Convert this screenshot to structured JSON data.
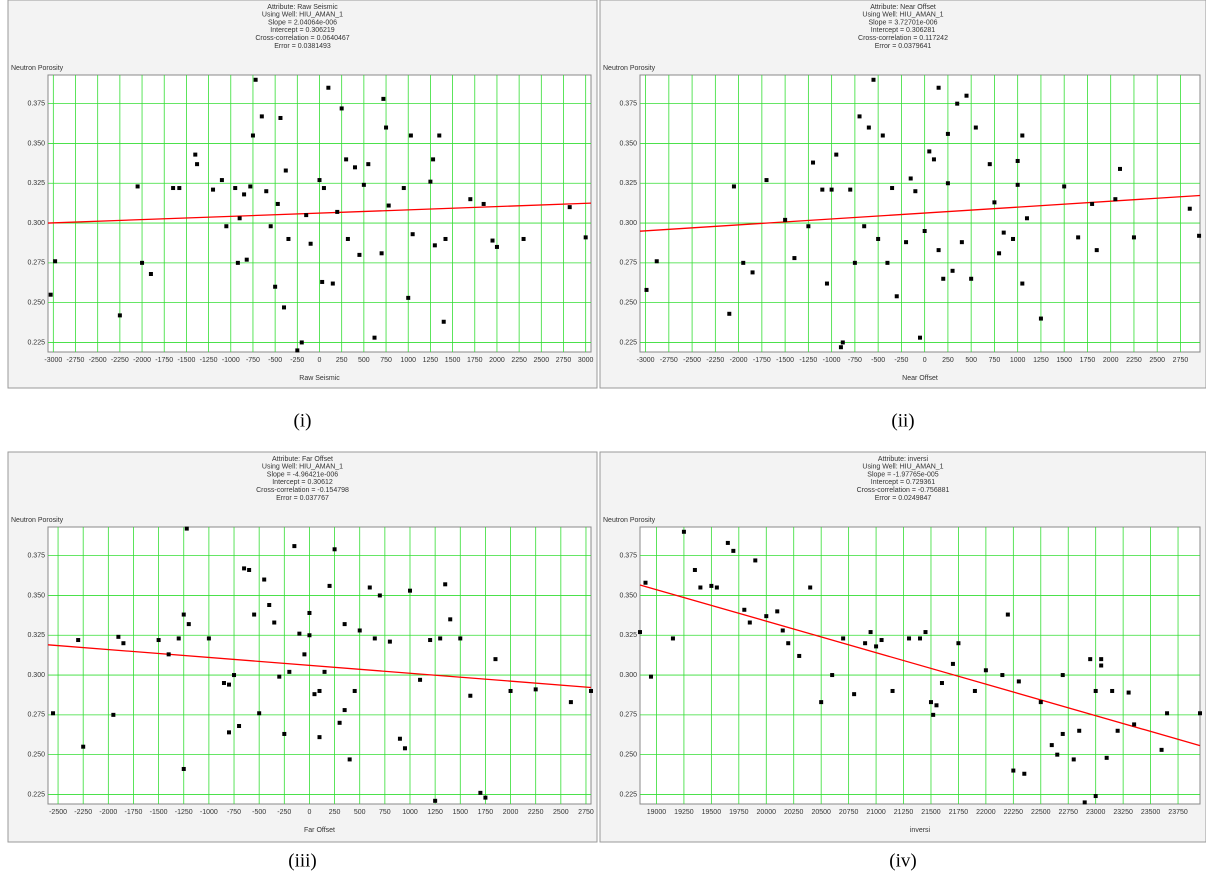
{
  "chart_data": [
    {
      "type": "scatter",
      "caption": "(i)",
      "title_lines": [
        "Attribute: Raw Seismic",
        "Using Well: HIU_AMAN_1",
        "Slope = 2.04064e-006",
        "Intercept = 0.306219",
        "Cross-correlation = 0.0640467",
        "Error = 0.0381493"
      ],
      "y_label": "Neutron Porosity",
      "x_label": "Raw Seismic",
      "grid": true,
      "color": "#000000",
      "xlim": [
        -3060,
        3060
      ],
      "ylim": [
        0.219,
        0.393
      ],
      "xticks": [
        -3000,
        -2750,
        -2500,
        -2250,
        -2000,
        -1750,
        -1500,
        -1250,
        -1000,
        -750,
        -500,
        -250,
        0,
        250,
        500,
        750,
        1000,
        1250,
        1500,
        1750,
        2000,
        2250,
        2500,
        2750,
        3000
      ],
      "yticks": [
        0.225,
        {
          "value": 0.25,
          "label": "0.250"
        },
        0.275,
        {
          "value": 0.3,
          "label": "0.300"
        },
        0.325,
        {
          "value": 0.35,
          "label": "0.350"
        },
        0.375
      ],
      "x": [
        -3030,
        -2980,
        -2250,
        -2050,
        -2000,
        -1900,
        -1650,
        -1580,
        -1400,
        -1380,
        -1200,
        -1100,
        -1050,
        -950,
        -920,
        -900,
        -850,
        -820,
        -780,
        -750,
        -720,
        -650,
        -600,
        -550,
        -500,
        -470,
        -440,
        -400,
        -380,
        -350,
        -250,
        -200,
        -150,
        -100,
        0,
        30,
        50,
        100,
        150,
        200,
        250,
        300,
        320,
        400,
        450,
        500,
        550,
        620,
        700,
        720,
        750,
        780,
        950,
        1000,
        1030,
        1050,
        1250,
        1280,
        1300,
        1350,
        1400,
        1420,
        1700,
        1850,
        1950,
        2000,
        2300,
        2820,
        3000
      ],
      "values": [
        0.255,
        0.276,
        0.242,
        0.323,
        0.275,
        0.268,
        0.322,
        0.322,
        0.343,
        0.337,
        0.321,
        0.327,
        0.298,
        0.322,
        0.275,
        0.303,
        0.318,
        0.277,
        0.323,
        0.355,
        0.39,
        0.367,
        0.32,
        0.298,
        0.26,
        0.312,
        0.366,
        0.247,
        0.333,
        0.29,
        0.22,
        0.225,
        0.305,
        0.287,
        0.327,
        0.263,
        0.322,
        0.385,
        0.262,
        0.307,
        0.372,
        0.34,
        0.29,
        0.335,
        0.28,
        0.324,
        0.337,
        0.228,
        0.281,
        0.378,
        0.36,
        0.311,
        0.322,
        0.253,
        0.355,
        0.293,
        0.326,
        0.34,
        0.286,
        0.355,
        0.238,
        0.29,
        0.315,
        0.312,
        0.289,
        0.285,
        0.29,
        0.31,
        0.291
      ],
      "fit": {
        "color": "#ff0000",
        "x": [
          -3060,
          3060
        ],
        "values": [
          0.3,
          0.3125
        ]
      }
    },
    {
      "type": "scatter",
      "caption": "(ii)",
      "title_lines": [
        "Attribute: Near Offset",
        "Using Well: HIU_AMAN_1",
        "Slope = 3.72701e-006",
        "Intercept = 0.306281",
        "Cross-correlation = 0.117242",
        "Error = 0.0379641"
      ],
      "y_label": "Neutron Porosity",
      "x_label": "Near Offset",
      "grid": true,
      "color": "#000000",
      "xlim": [
        -3060,
        2960
      ],
      "ylim": [
        0.219,
        0.393
      ],
      "xticks": [
        -3000,
        -2750,
        -2500,
        -2250,
        -2000,
        -1750,
        -1500,
        -1250,
        -1000,
        -750,
        -500,
        -250,
        0,
        250,
        500,
        750,
        1000,
        1250,
        1500,
        1750,
        2000,
        2250,
        2500,
        2750
      ],
      "yticks": [
        0.225,
        {
          "value": 0.25,
          "label": "0.250"
        },
        0.275,
        {
          "value": 0.3,
          "label": "0.300"
        },
        0.325,
        {
          "value": 0.35,
          "label": "0.350"
        },
        0.375
      ],
      "x": [
        -2990,
        -2880,
        -2100,
        -2050,
        -1950,
        -1850,
        -1700,
        -1500,
        -1400,
        -1250,
        -1200,
        -1100,
        -1050,
        -1000,
        -950,
        -900,
        -880,
        -800,
        -750,
        -700,
        -650,
        -600,
        -550,
        -500,
        -450,
        -400,
        -350,
        -300,
        -200,
        -150,
        -100,
        -50,
        0,
        50,
        100,
        150,
        150,
        200,
        250,
        250,
        300,
        350,
        400,
        450,
        500,
        550,
        700,
        750,
        800,
        850,
        950,
        1000,
        1000,
        1050,
        1050,
        1100,
        1250,
        1500,
        1650,
        1800,
        1850,
        2050,
        2100,
        2250,
        2850,
        2950
      ],
      "values": [
        0.258,
        0.276,
        0.243,
        0.323,
        0.275,
        0.269,
        0.327,
        0.302,
        0.278,
        0.298,
        0.338,
        0.321,
        0.262,
        0.321,
        0.343,
        0.222,
        0.225,
        0.321,
        0.275,
        0.367,
        0.298,
        0.36,
        0.39,
        0.29,
        0.355,
        0.275,
        0.322,
        0.254,
        0.288,
        0.328,
        0.32,
        0.228,
        0.295,
        0.345,
        0.34,
        0.283,
        0.385,
        0.265,
        0.356,
        0.325,
        0.27,
        0.375,
        0.288,
        0.38,
        0.265,
        0.36,
        0.337,
        0.313,
        0.281,
        0.294,
        0.29,
        0.324,
        0.339,
        0.355,
        0.262,
        0.303,
        0.24,
        0.323,
        0.291,
        0.312,
        0.283,
        0.315,
        0.334,
        0.291,
        0.309,
        0.292
      ],
      "fit": {
        "color": "#ff0000",
        "x": [
          -3060,
          2960
        ],
        "values": [
          0.2949,
          0.3173
        ]
      }
    },
    {
      "type": "scatter",
      "caption": "(iii)",
      "title_lines": [
        "Attribute: Far Offset",
        "Using Well: HIU_AMAN_1",
        "Slope = -4.96421e-006",
        "Intercept = 0.30612",
        "Cross-correlation = -0.154798",
        "Error = 0.037767"
      ],
      "y_label": "Neutron Porosity",
      "x_label": "Far Offset",
      "grid": true,
      "color": "#000000",
      "xlim": [
        -2600,
        2800
      ],
      "ylim": [
        0.219,
        0.393
      ],
      "xticks": [
        -2500,
        -2250,
        -2000,
        -1750,
        -1500,
        -1250,
        -1000,
        -750,
        -500,
        -250,
        0,
        250,
        500,
        750,
        1000,
        1250,
        1500,
        1750,
        2000,
        2250,
        2500,
        2750
      ],
      "yticks": [
        0.225,
        {
          "value": 0.25,
          "label": "0.250"
        },
        0.275,
        {
          "value": 0.3,
          "label": "0.300"
        },
        0.325,
        {
          "value": 0.35,
          "label": "0.350"
        },
        0.375
      ],
      "x": [
        -2550,
        -2300,
        -2250,
        -1950,
        -1900,
        -1850,
        -1500,
        -1400,
        -1300,
        -1250,
        -1200,
        -1250,
        -1220,
        -1000,
        -850,
        -800,
        -800,
        -750,
        -700,
        -650,
        -600,
        -550,
        -500,
        -450,
        -400,
        -350,
        -300,
        -250,
        -200,
        -150,
        -100,
        -50,
        0,
        0,
        50,
        100,
        100,
        150,
        200,
        250,
        300,
        350,
        350,
        400,
        450,
        500,
        600,
        650,
        700,
        800,
        900,
        950,
        1000,
        1100,
        1200,
        1250,
        1300,
        1350,
        1400,
        1500,
        1600,
        1700,
        1750,
        1850,
        2000,
        2250,
        2600,
        2800
      ],
      "values": [
        0.276,
        0.322,
        0.255,
        0.275,
        0.324,
        0.32,
        0.322,
        0.313,
        0.323,
        0.338,
        0.332,
        0.241,
        0.392,
        0.323,
        0.295,
        0.294,
        0.264,
        0.3,
        0.268,
        0.367,
        0.366,
        0.338,
        0.276,
        0.36,
        0.344,
        0.333,
        0.299,
        0.263,
        0.302,
        0.381,
        0.326,
        0.313,
        0.325,
        0.339,
        0.288,
        0.29,
        0.261,
        0.302,
        0.356,
        0.379,
        0.27,
        0.332,
        0.278,
        0.247,
        0.29,
        0.328,
        0.355,
        0.323,
        0.35,
        0.321,
        0.26,
        0.254,
        0.353,
        0.297,
        0.322,
        0.221,
        0.323,
        0.357,
        0.335,
        0.323,
        0.287,
        0.226,
        0.223,
        0.31,
        0.29,
        0.291,
        0.283,
        0.29
      ],
      "fit": {
        "color": "#ff0000",
        "x": [
          -2600,
          2800
        ],
        "values": [
          0.319,
          0.2922
        ]
      }
    },
    {
      "type": "scatter",
      "caption": "(iv)",
      "title_lines": [
        "Attribute: inversi",
        "Using Well: HIU_AMAN_1",
        "Slope = -1.97765e-005",
        "Intercept = 0.729361",
        "Cross-correlation = -0.756881",
        "Error = 0.0249847"
      ],
      "y_label": "Neutron Porosity",
      "x_label": "inversi",
      "grid": true,
      "color": "#000000",
      "xlim": [
        18850,
        23950
      ],
      "ylim": [
        0.219,
        0.393
      ],
      "xticks": [
        19000,
        19250,
        19500,
        19750,
        20000,
        20250,
        20500,
        20750,
        21000,
        21250,
        21500,
        21750,
        22000,
        22250,
        22500,
        22750,
        23000,
        23250,
        23500,
        23750
      ],
      "yticks": [
        0.225,
        {
          "value": 0.25,
          "label": "0.250"
        },
        0.275,
        {
          "value": 0.3,
          "label": "0.300"
        },
        0.325,
        {
          "value": 0.35,
          "label": "0.350"
        },
        0.375
      ],
      "x": [
        18850,
        18900,
        18950,
        19150,
        19250,
        19350,
        19400,
        19500,
        19550,
        19650,
        19700,
        19800,
        19850,
        19900,
        20000,
        20100,
        20150,
        20200,
        20300,
        20400,
        20500,
        20600,
        20700,
        20800,
        20900,
        20950,
        21000,
        21050,
        21150,
        21300,
        21400,
        21450,
        21500,
        21520,
        21550,
        21600,
        21700,
        21750,
        21900,
        22000,
        22150,
        22200,
        22250,
        22300,
        22350,
        22500,
        22600,
        22650,
        22700,
        22700,
        22800,
        22850,
        22900,
        22950,
        23000,
        23000,
        23050,
        23050,
        23100,
        23150,
        23200,
        23300,
        23350,
        23600,
        23650,
        23950
      ],
      "values": [
        0.327,
        0.358,
        0.299,
        0.323,
        0.39,
        0.366,
        0.355,
        0.356,
        0.355,
        0.383,
        0.378,
        0.341,
        0.333,
        0.372,
        0.337,
        0.34,
        0.328,
        0.32,
        0.312,
        0.355,
        0.283,
        0.3,
        0.323,
        0.288,
        0.32,
        0.327,
        0.318,
        0.322,
        0.29,
        0.323,
        0.323,
        0.327,
        0.283,
        0.275,
        0.281,
        0.295,
        0.307,
        0.32,
        0.29,
        0.303,
        0.3,
        0.338,
        0.24,
        0.296,
        0.238,
        0.283,
        0.256,
        0.25,
        0.263,
        0.3,
        0.247,
        0.265,
        0.22,
        0.31,
        0.29,
        0.224,
        0.31,
        0.306,
        0.248,
        0.29,
        0.265,
        0.289,
        0.269,
        0.253,
        0.276,
        0.276
      ],
      "fit": {
        "color": "#ff0000",
        "x": [
          18850,
          23950
        ],
        "values": [
          0.3566,
          0.2557
        ]
      }
    }
  ]
}
